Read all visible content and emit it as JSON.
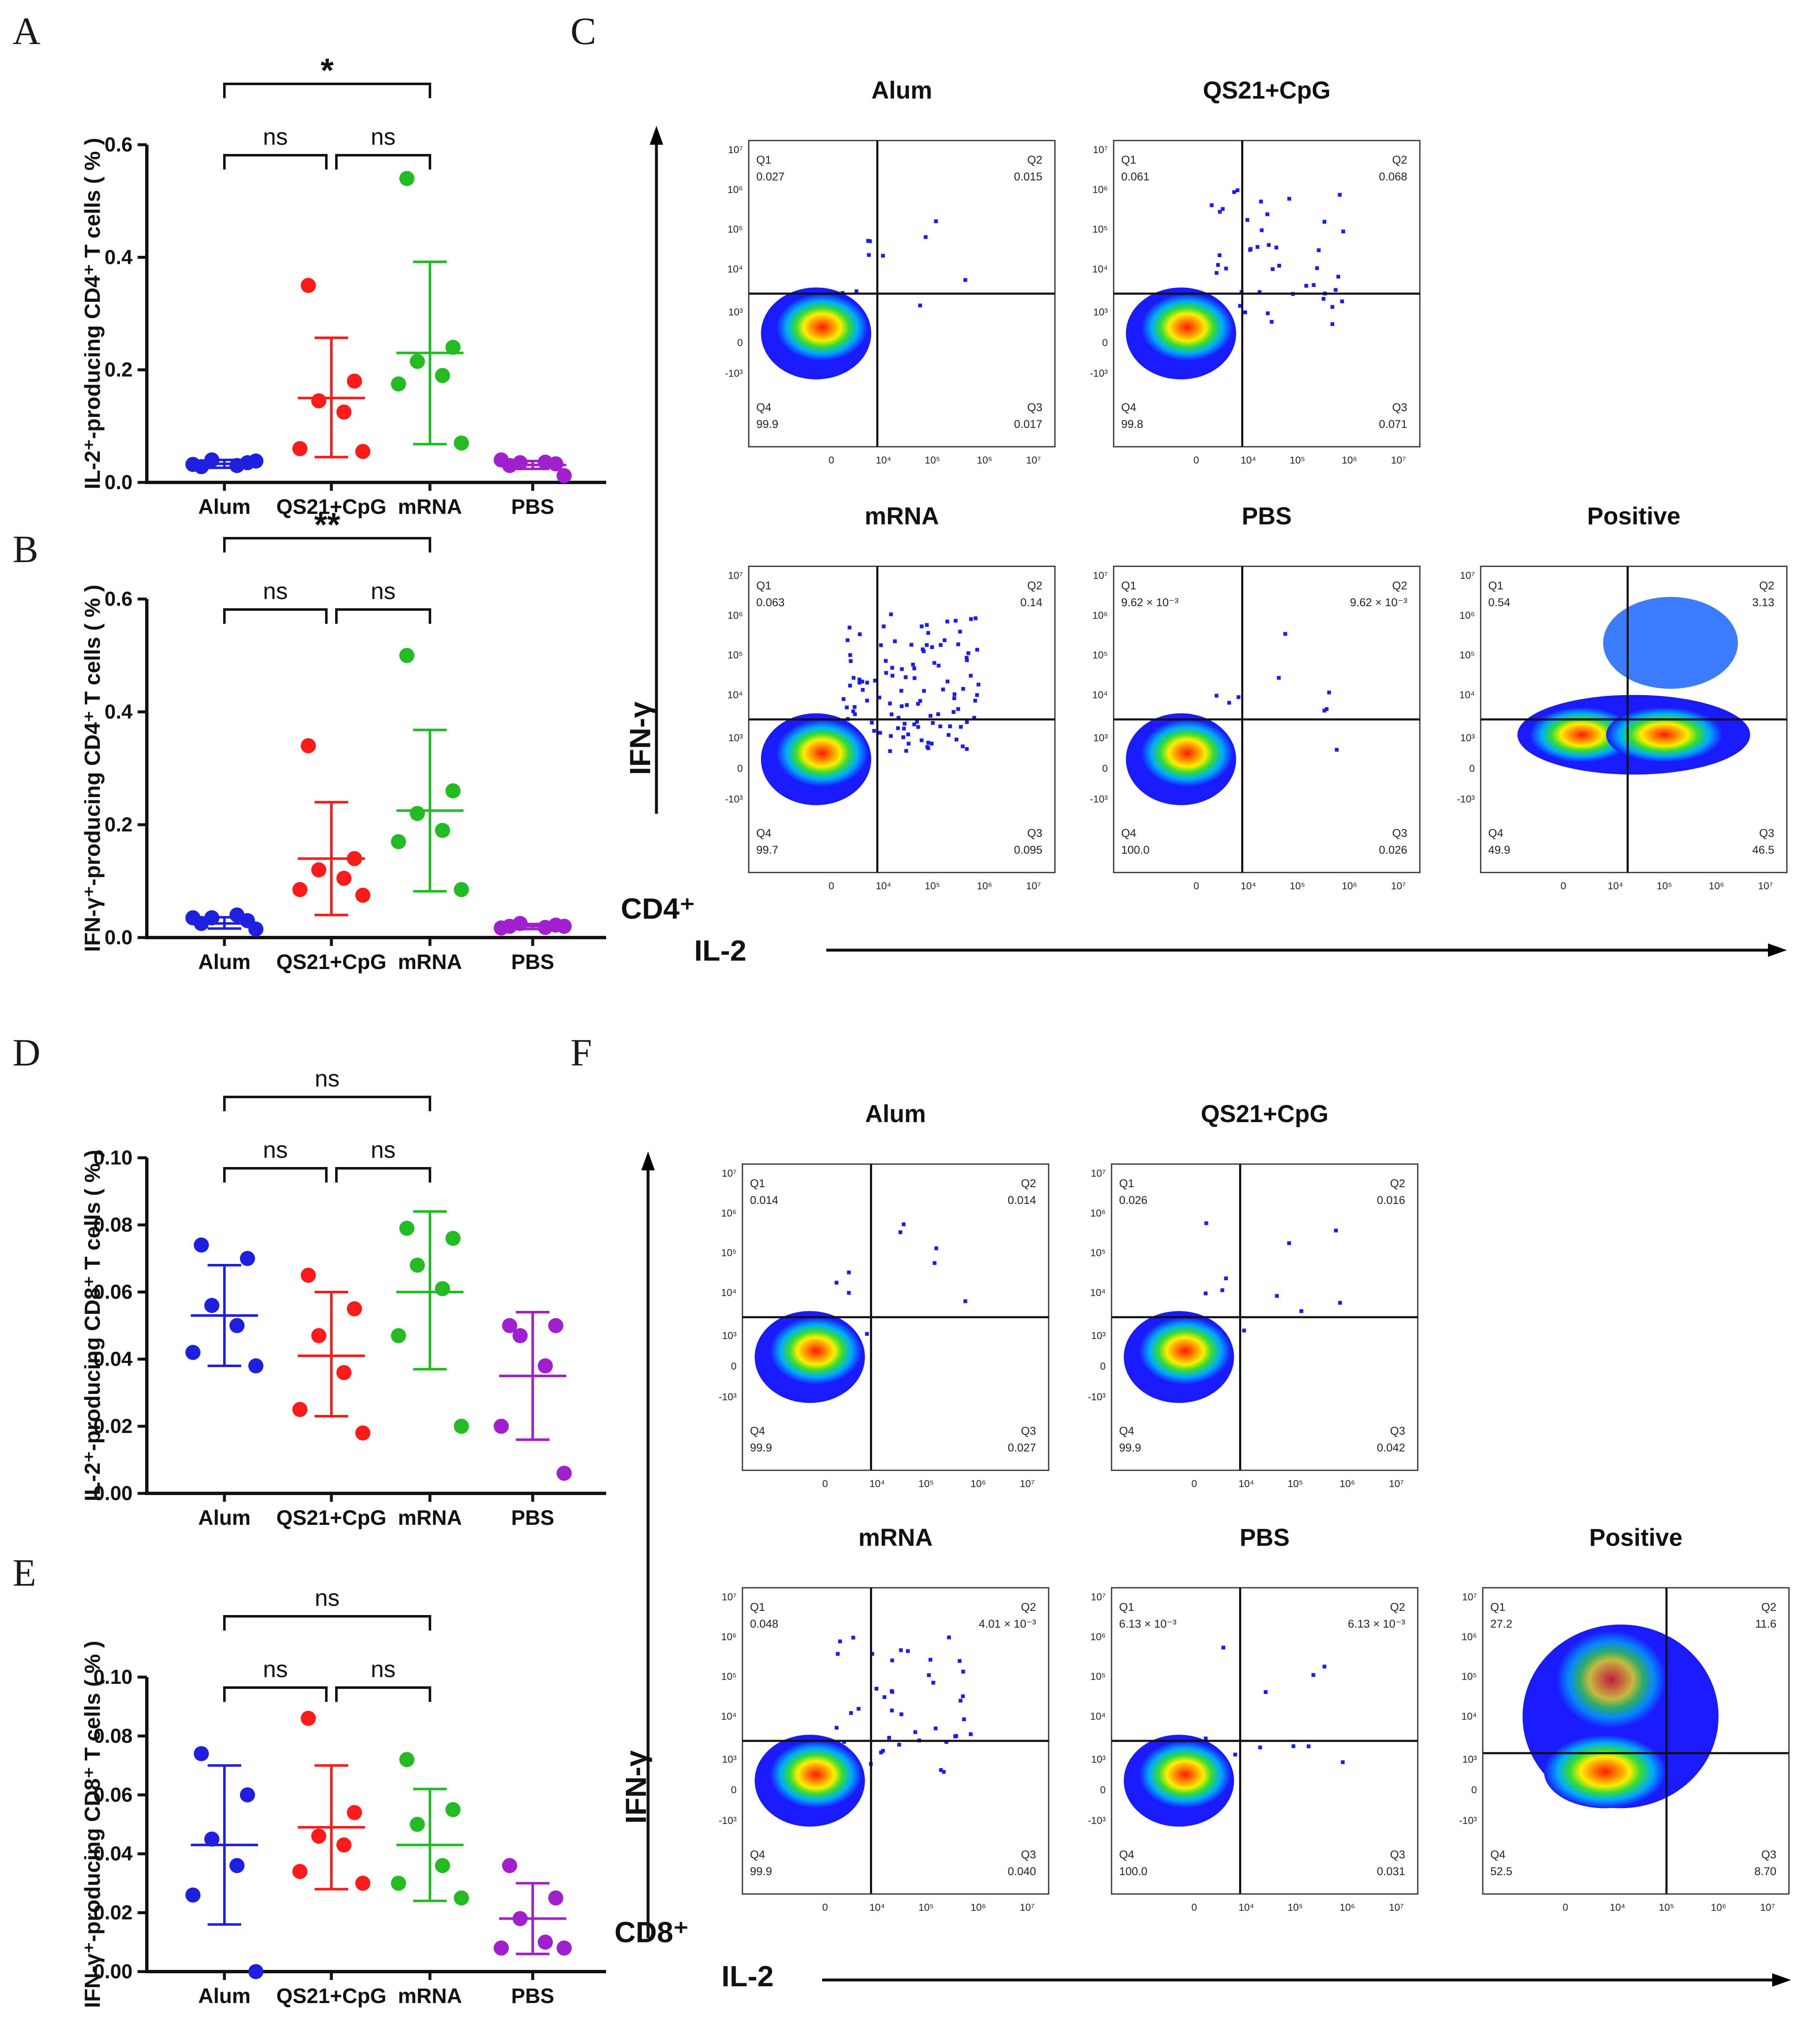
{
  "panel_letters": [
    "A",
    "B",
    "C",
    "D",
    "E",
    "F"
  ],
  "colors": {
    "Alum": "#1f1fe0",
    "QS21+CpG": "#ff1a1a",
    "mRNA": "#22bb22",
    "PBS": "#a020d0",
    "axis": "#111111"
  },
  "chart_data": [
    {
      "id": "A",
      "type": "scatter",
      "ylabel": "IL-2⁺-producing CD4⁺ T cells ( % )",
      "categories": [
        "Alum",
        "QS21+CpG",
        "mRNA",
        "PBS"
      ],
      "ylim": [
        0,
        0.6
      ],
      "yticks": [
        "0.0",
        "0.2",
        "0.4",
        "0.6"
      ],
      "ytick_values": [
        0,
        0.2,
        0.4,
        0.6
      ],
      "series": [
        {
          "name": "Alum",
          "points": [
            0.028,
            0.035,
            0.04,
            0.03,
            0.032,
            0.038
          ],
          "mean": 0.033,
          "sd_low": 0.026,
          "sd_high": 0.04
        },
        {
          "name": "QS21+CpG",
          "points": [
            0.35,
            0.18,
            0.145,
            0.125,
            0.06,
            0.055
          ],
          "mean": 0.15,
          "sd_low": 0.045,
          "sd_high": 0.257
        },
        {
          "name": "mRNA",
          "points": [
            0.54,
            0.24,
            0.215,
            0.19,
            0.175,
            0.07
          ],
          "mean": 0.23,
          "sd_low": 0.068,
          "sd_high": 0.392
        },
        {
          "name": "PBS",
          "points": [
            0.03,
            0.033,
            0.035,
            0.036,
            0.04,
            0.012
          ],
          "mean": 0.031,
          "sd_low": 0.024,
          "sd_high": 0.038
        }
      ],
      "significance": [
        {
          "from": 0,
          "to": 2,
          "label": "*",
          "level": 1
        },
        {
          "from": 0,
          "to": 1,
          "label": "ns",
          "level": 0
        },
        {
          "from": 1,
          "to": 2,
          "label": "ns",
          "level": 0
        }
      ]
    },
    {
      "id": "B",
      "type": "scatter",
      "ylabel": "IFN-γ⁺-producing CD4⁺ T cells ( % )",
      "categories": [
        "Alum",
        "QS21+CpG",
        "mRNA",
        "PBS"
      ],
      "ylim": [
        0,
        0.6
      ],
      "yticks": [
        "0.0",
        "0.2",
        "0.4",
        "0.6"
      ],
      "ytick_values": [
        0,
        0.2,
        0.4,
        0.6
      ],
      "series": [
        {
          "name": "Alum",
          "points": [
            0.025,
            0.03,
            0.035,
            0.04,
            0.035,
            0.015
          ],
          "mean": 0.025,
          "sd_low": 0.016,
          "sd_high": 0.036
        },
        {
          "name": "QS21+CpG",
          "points": [
            0.34,
            0.14,
            0.12,
            0.105,
            0.085,
            0.075
          ],
          "mean": 0.14,
          "sd_low": 0.04,
          "sd_high": 0.24
        },
        {
          "name": "mRNA",
          "points": [
            0.5,
            0.26,
            0.22,
            0.19,
            0.17,
            0.085
          ],
          "mean": 0.225,
          "sd_low": 0.082,
          "sd_high": 0.368
        },
        {
          "name": "PBS",
          "points": [
            0.02,
            0.022,
            0.025,
            0.018,
            0.017,
            0.02
          ],
          "mean": 0.02,
          "sd_low": 0.015,
          "sd_high": 0.024
        }
      ],
      "significance": [
        {
          "from": 0,
          "to": 2,
          "label": "**",
          "level": 1
        },
        {
          "from": 0,
          "to": 1,
          "label": "ns",
          "level": 0
        },
        {
          "from": 1,
          "to": 2,
          "label": "ns",
          "level": 0
        }
      ]
    },
    {
      "id": "D",
      "type": "scatter",
      "ylabel": "IL-2⁺-producing CD8⁺ T cells ( % )",
      "categories": [
        "Alum",
        "QS21+CpG",
        "mRNA",
        "PBS"
      ],
      "ylim": [
        0,
        0.1
      ],
      "yticks": [
        "0.00",
        "0.02",
        "0.04",
        "0.06",
        "0.08",
        "0.10"
      ],
      "ytick_values": [
        0,
        0.02,
        0.04,
        0.06,
        0.08,
        0.1
      ],
      "series": [
        {
          "name": "Alum",
          "points": [
            0.074,
            0.07,
            0.056,
            0.05,
            0.042,
            0.038
          ],
          "mean": 0.053,
          "sd_low": 0.038,
          "sd_high": 0.068
        },
        {
          "name": "QS21+CpG",
          "points": [
            0.065,
            0.055,
            0.047,
            0.036,
            0.025,
            0.018
          ],
          "mean": 0.041,
          "sd_low": 0.023,
          "sd_high": 0.06
        },
        {
          "name": "mRNA",
          "points": [
            0.079,
            0.076,
            0.068,
            0.061,
            0.047,
            0.02
          ],
          "mean": 0.06,
          "sd_low": 0.037,
          "sd_high": 0.084
        },
        {
          "name": "PBS",
          "points": [
            0.05,
            0.05,
            0.047,
            0.038,
            0.02,
            0.006
          ],
          "mean": 0.035,
          "sd_low": 0.016,
          "sd_high": 0.054
        }
      ],
      "significance": [
        {
          "from": 0,
          "to": 2,
          "label": "ns",
          "level": 1
        },
        {
          "from": 0,
          "to": 1,
          "label": "ns",
          "level": 0
        },
        {
          "from": 1,
          "to": 2,
          "label": "ns",
          "level": 0
        }
      ]
    },
    {
      "id": "E",
      "type": "scatter",
      "ylabel": "IFN-γ⁺-producing CD8⁺ T cells ( % )",
      "categories": [
        "Alum",
        "QS21+CpG",
        "mRNA",
        "PBS"
      ],
      "ylim": [
        0,
        0.1
      ],
      "yticks": [
        "0.00",
        "0.02",
        "0.04",
        "0.06",
        "0.08",
        "0.10"
      ],
      "ytick_values": [
        0,
        0.02,
        0.04,
        0.06,
        0.08,
        0.1
      ],
      "series": [
        {
          "name": "Alum",
          "points": [
            0.074,
            0.06,
            0.045,
            0.036,
            0.026,
            0.0
          ],
          "mean": 0.043,
          "sd_low": 0.016,
          "sd_high": 0.07
        },
        {
          "name": "QS21+CpG",
          "points": [
            0.086,
            0.054,
            0.046,
            0.043,
            0.034,
            0.03
          ],
          "mean": 0.049,
          "sd_low": 0.028,
          "sd_high": 0.07
        },
        {
          "name": "mRNA",
          "points": [
            0.072,
            0.055,
            0.05,
            0.036,
            0.03,
            0.025
          ],
          "mean": 0.043,
          "sd_low": 0.024,
          "sd_high": 0.062
        },
        {
          "name": "PBS",
          "points": [
            0.036,
            0.025,
            0.018,
            0.01,
            0.008,
            0.008
          ],
          "mean": 0.018,
          "sd_low": 0.006,
          "sd_high": 0.03
        }
      ],
      "significance": [
        {
          "from": 0,
          "to": 2,
          "label": "ns",
          "level": 1
        },
        {
          "from": 0,
          "to": 1,
          "label": "ns",
          "level": 0
        },
        {
          "from": 1,
          "to": 2,
          "label": "ns",
          "level": 0
        }
      ]
    }
  ],
  "flow_sections": [
    {
      "id": "C",
      "cell_label": "CD4⁺",
      "x_marker": "IL-2",
      "y_marker": "IFN-γ",
      "plots": [
        {
          "title": "Alum",
          "q1": "0.027",
          "q2": "0.015",
          "q3": "0.017",
          "q4": "99.9",
          "scatter": "low"
        },
        {
          "title": "QS21+CpG",
          "q1": "0.061",
          "q2": "0.068",
          "q3": "0.071",
          "q4": "99.8",
          "scatter": "medium"
        },
        {
          "title": "mRNA",
          "q1": "0.063",
          "q2": "0.14",
          "q3": "0.095",
          "q4": "99.7",
          "scatter": "high"
        },
        {
          "title": "PBS",
          "q1": "9.62 × 10⁻³",
          "q2": "9.62 × 10⁻³",
          "q3": "0.026",
          "q4": "100.0",
          "scatter": "low"
        },
        {
          "title": "Positive",
          "q1": "0.54",
          "q2": "3.13",
          "q3": "46.5",
          "q4": "49.9",
          "scatter": "positive-cd4"
        }
      ]
    },
    {
      "id": "F",
      "cell_label": "CD8⁺",
      "x_marker": "IL-2",
      "y_marker": "IFN-γ",
      "plots": [
        {
          "title": "Alum",
          "q1": "0.014",
          "q2": "0.014",
          "q3": "0.027",
          "q4": "99.9",
          "scatter": "low"
        },
        {
          "title": "QS21+CpG",
          "q1": "0.026",
          "q2": "0.016",
          "q3": "0.042",
          "q4": "99.9",
          "scatter": "low"
        },
        {
          "title": "mRNA",
          "q1": "0.048",
          "q2": "4.01 × 10⁻³",
          "q3": "0.040",
          "q4": "99.9",
          "scatter": "medium"
        },
        {
          "title": "PBS",
          "q1": "6.13 × 10⁻³",
          "q2": "6.13 × 10⁻³",
          "q3": "0.031",
          "q4": "100.0",
          "scatter": "low"
        },
        {
          "title": "Positive",
          "q1": "27.2",
          "q2": "11.6",
          "q3": "8.70",
          "q4": "52.5",
          "scatter": "positive-cd8"
        }
      ]
    }
  ],
  "flow_axis_labels": {
    "y": [
      "10⁷",
      "10⁶",
      "10⁵",
      "10⁴",
      "10³",
      "0",
      "-10³"
    ],
    "x": [
      "0",
      "10⁴",
      "10⁵",
      "10⁶",
      "10⁷"
    ],
    "quadrants": [
      "Q1",
      "Q2",
      "Q3",
      "Q4"
    ]
  }
}
